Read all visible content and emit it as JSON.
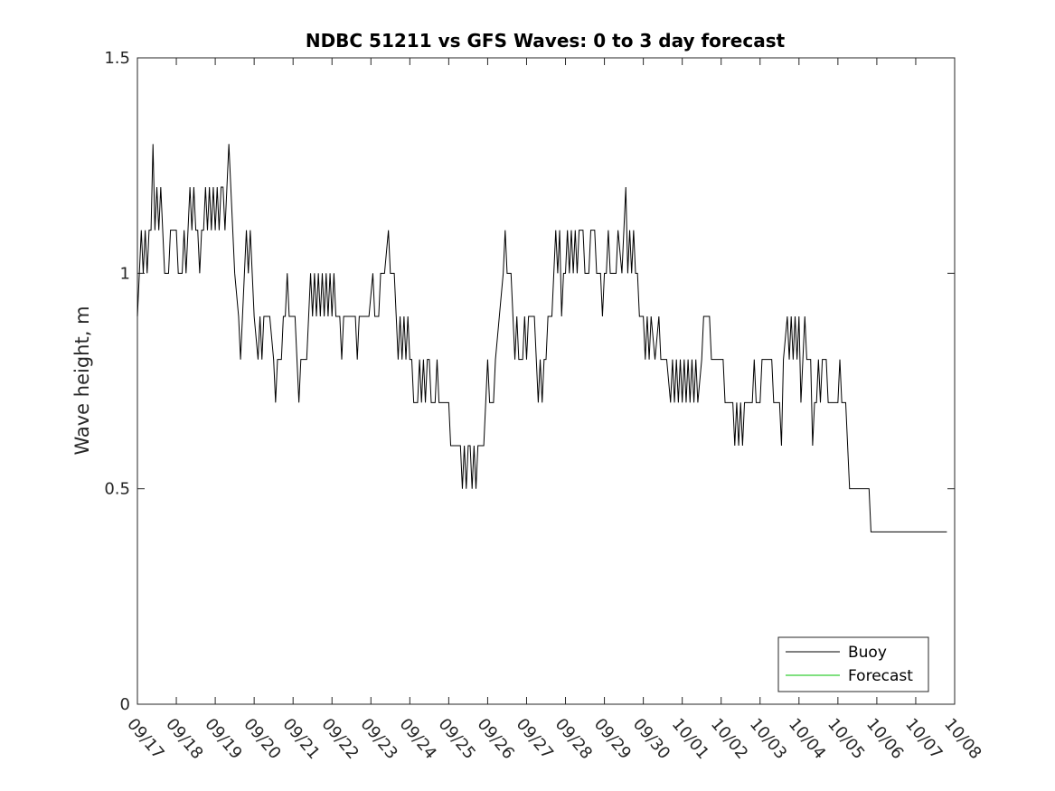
{
  "chart_data": {
    "type": "line",
    "title": "NDBC 51211 vs GFS Waves: 0 to 3 day forecast",
    "xlabel": "",
    "ylabel": "Wave height, m",
    "ylim": [
      0,
      1.5
    ],
    "yticks": [
      0,
      0.5,
      1,
      1.5
    ],
    "ytick_labels": [
      "0",
      "0.5",
      "1",
      "1.5"
    ],
    "xlim_days": [
      0,
      21
    ],
    "xtick_labels": [
      "09/17",
      "09/18",
      "09/19",
      "09/20",
      "09/21",
      "09/22",
      "09/23",
      "09/24",
      "09/25",
      "09/26",
      "09/27",
      "09/28",
      "09/29",
      "09/30",
      "10/01",
      "10/02",
      "10/03",
      "10/04",
      "10/05",
      "10/06",
      "10/07",
      "10/08"
    ],
    "legend": {
      "location": "bottom-right",
      "entries": [
        "Buoy",
        "Forecast"
      ]
    },
    "series": [
      {
        "name": "Buoy",
        "color": "#000000",
        "x_unit": "days since 09/17 00:00",
        "points": [
          [
            0.0,
            0.9
          ],
          [
            0.05,
            1.0
          ],
          [
            0.1,
            1.1
          ],
          [
            0.15,
            1.0
          ],
          [
            0.2,
            1.1
          ],
          [
            0.25,
            1.0
          ],
          [
            0.3,
            1.1
          ],
          [
            0.35,
            1.1
          ],
          [
            0.4,
            1.3
          ],
          [
            0.45,
            1.1
          ],
          [
            0.5,
            1.2
          ],
          [
            0.55,
            1.1
          ],
          [
            0.6,
            1.2
          ],
          [
            0.65,
            1.1
          ],
          [
            0.7,
            1.0
          ],
          [
            0.8,
            1.0
          ],
          [
            0.85,
            1.1
          ],
          [
            1.0,
            1.1
          ],
          [
            1.05,
            1.0
          ],
          [
            1.15,
            1.0
          ],
          [
            1.2,
            1.1
          ],
          [
            1.25,
            1.0
          ],
          [
            1.3,
            1.1
          ],
          [
            1.35,
            1.2
          ],
          [
            1.4,
            1.1
          ],
          [
            1.45,
            1.2
          ],
          [
            1.5,
            1.1
          ],
          [
            1.55,
            1.1
          ],
          [
            1.6,
            1.0
          ],
          [
            1.65,
            1.1
          ],
          [
            1.7,
            1.1
          ],
          [
            1.75,
            1.2
          ],
          [
            1.8,
            1.1
          ],
          [
            1.85,
            1.2
          ],
          [
            1.9,
            1.1
          ],
          [
            1.95,
            1.2
          ],
          [
            2.0,
            1.1
          ],
          [
            2.05,
            1.2
          ],
          [
            2.1,
            1.1
          ],
          [
            2.15,
            1.2
          ],
          [
            2.2,
            1.2
          ],
          [
            2.25,
            1.1
          ],
          [
            2.3,
            1.2
          ],
          [
            2.35,
            1.3
          ],
          [
            2.4,
            1.2
          ],
          [
            2.5,
            1.0
          ],
          [
            2.6,
            0.9
          ],
          [
            2.65,
            0.8
          ],
          [
            2.7,
            0.9
          ],
          [
            2.75,
            1.0
          ],
          [
            2.8,
            1.1
          ],
          [
            2.85,
            1.0
          ],
          [
            2.9,
            1.1
          ],
          [
            2.95,
            1.0
          ],
          [
            3.0,
            0.9
          ],
          [
            3.1,
            0.8
          ],
          [
            3.15,
            0.9
          ],
          [
            3.2,
            0.8
          ],
          [
            3.25,
            0.9
          ],
          [
            3.4,
            0.9
          ],
          [
            3.5,
            0.8
          ],
          [
            3.55,
            0.7
          ],
          [
            3.6,
            0.8
          ],
          [
            3.7,
            0.8
          ],
          [
            3.75,
            0.9
          ],
          [
            3.8,
            0.9
          ],
          [
            3.85,
            1.0
          ],
          [
            3.9,
            0.9
          ],
          [
            4.05,
            0.9
          ],
          [
            4.1,
            0.8
          ],
          [
            4.15,
            0.7
          ],
          [
            4.2,
            0.8
          ],
          [
            4.35,
            0.8
          ],
          [
            4.4,
            0.9
          ],
          [
            4.45,
            1.0
          ],
          [
            4.5,
            0.9
          ],
          [
            4.55,
            1.0
          ],
          [
            4.6,
            0.9
          ],
          [
            4.65,
            1.0
          ],
          [
            4.7,
            0.9
          ],
          [
            4.75,
            1.0
          ],
          [
            4.8,
            0.9
          ],
          [
            4.85,
            1.0
          ],
          [
            4.9,
            0.9
          ],
          [
            4.95,
            1.0
          ],
          [
            5.0,
            0.9
          ],
          [
            5.05,
            1.0
          ],
          [
            5.1,
            0.9
          ],
          [
            5.2,
            0.9
          ],
          [
            5.25,
            0.8
          ],
          [
            5.3,
            0.9
          ],
          [
            5.45,
            0.9
          ],
          [
            5.6,
            0.9
          ],
          [
            5.65,
            0.8
          ],
          [
            5.7,
            0.9
          ],
          [
            5.95,
            0.9
          ],
          [
            6.05,
            1.0
          ],
          [
            6.1,
            0.9
          ],
          [
            6.2,
            0.9
          ],
          [
            6.25,
            1.0
          ],
          [
            6.35,
            1.0
          ],
          [
            6.45,
            1.1
          ],
          [
            6.5,
            1.0
          ],
          [
            6.6,
            1.0
          ],
          [
            6.65,
            0.9
          ],
          [
            6.7,
            0.8
          ],
          [
            6.75,
            0.9
          ],
          [
            6.8,
            0.8
          ],
          [
            6.85,
            0.9
          ],
          [
            6.9,
            0.8
          ],
          [
            6.95,
            0.9
          ],
          [
            7.0,
            0.8
          ],
          [
            7.05,
            0.8
          ],
          [
            7.1,
            0.7
          ],
          [
            7.2,
            0.7
          ],
          [
            7.25,
            0.8
          ],
          [
            7.3,
            0.7
          ],
          [
            7.35,
            0.8
          ],
          [
            7.4,
            0.7
          ],
          [
            7.45,
            0.8
          ],
          [
            7.5,
            0.8
          ],
          [
            7.55,
            0.7
          ],
          [
            7.65,
            0.7
          ],
          [
            7.7,
            0.8
          ],
          [
            7.75,
            0.7
          ],
          [
            7.85,
            0.7
          ],
          [
            8.0,
            0.7
          ],
          [
            8.05,
            0.6
          ],
          [
            8.3,
            0.6
          ],
          [
            8.35,
            0.5
          ],
          [
            8.4,
            0.6
          ],
          [
            8.45,
            0.5
          ],
          [
            8.5,
            0.6
          ],
          [
            8.55,
            0.6
          ],
          [
            8.6,
            0.5
          ],
          [
            8.65,
            0.6
          ],
          [
            8.7,
            0.5
          ],
          [
            8.75,
            0.6
          ],
          [
            8.9,
            0.6
          ],
          [
            8.95,
            0.7
          ],
          [
            9.0,
            0.8
          ],
          [
            9.05,
            0.7
          ],
          [
            9.15,
            0.7
          ],
          [
            9.2,
            0.8
          ],
          [
            9.3,
            0.9
          ],
          [
            9.4,
            1.0
          ],
          [
            9.45,
            1.1
          ],
          [
            9.5,
            1.0
          ],
          [
            9.6,
            1.0
          ],
          [
            9.65,
            0.9
          ],
          [
            9.7,
            0.8
          ],
          [
            9.75,
            0.9
          ],
          [
            9.8,
            0.8
          ],
          [
            9.9,
            0.8
          ],
          [
            9.95,
            0.9
          ],
          [
            10.0,
            0.8
          ],
          [
            10.05,
            0.9
          ],
          [
            10.2,
            0.9
          ],
          [
            10.25,
            0.8
          ],
          [
            10.3,
            0.7
          ],
          [
            10.35,
            0.8
          ],
          [
            10.4,
            0.7
          ],
          [
            10.45,
            0.8
          ],
          [
            10.5,
            0.8
          ],
          [
            10.55,
            0.9
          ],
          [
            10.65,
            0.9
          ],
          [
            10.7,
            1.0
          ],
          [
            10.75,
            1.1
          ],
          [
            10.8,
            1.0
          ],
          [
            10.85,
            1.1
          ],
          [
            10.9,
            0.9
          ],
          [
            10.95,
            1.0
          ],
          [
            11.0,
            1.0
          ],
          [
            11.05,
            1.1
          ],
          [
            11.1,
            1.0
          ],
          [
            11.15,
            1.1
          ],
          [
            11.2,
            1.0
          ],
          [
            11.25,
            1.1
          ],
          [
            11.3,
            1.0
          ],
          [
            11.35,
            1.1
          ],
          [
            11.45,
            1.1
          ],
          [
            11.5,
            1.0
          ],
          [
            11.6,
            1.0
          ],
          [
            11.65,
            1.1
          ],
          [
            11.75,
            1.1
          ],
          [
            11.8,
            1.0
          ],
          [
            11.9,
            1.0
          ],
          [
            11.95,
            0.9
          ],
          [
            12.0,
            1.0
          ],
          [
            12.05,
            1.0
          ],
          [
            12.1,
            1.1
          ],
          [
            12.15,
            1.0
          ],
          [
            12.3,
            1.0
          ],
          [
            12.35,
            1.1
          ],
          [
            12.45,
            1.0
          ],
          [
            12.5,
            1.1
          ],
          [
            12.55,
            1.2
          ],
          [
            12.6,
            1.0
          ],
          [
            12.65,
            1.1
          ],
          [
            12.7,
            1.0
          ],
          [
            12.75,
            1.1
          ],
          [
            12.8,
            1.0
          ],
          [
            12.85,
            1.0
          ],
          [
            12.9,
            0.9
          ],
          [
            13.0,
            0.9
          ],
          [
            13.05,
            0.8
          ],
          [
            13.1,
            0.9
          ],
          [
            13.15,
            0.8
          ],
          [
            13.2,
            0.9
          ],
          [
            13.3,
            0.8
          ],
          [
            13.4,
            0.9
          ],
          [
            13.45,
            0.8
          ],
          [
            13.5,
            0.8
          ],
          [
            13.6,
            0.8
          ],
          [
            13.7,
            0.7
          ],
          [
            13.75,
            0.8
          ],
          [
            13.8,
            0.7
          ],
          [
            13.85,
            0.8
          ],
          [
            13.9,
            0.7
          ],
          [
            13.95,
            0.8
          ],
          [
            14.0,
            0.7
          ],
          [
            14.05,
            0.8
          ],
          [
            14.1,
            0.7
          ],
          [
            14.15,
            0.8
          ],
          [
            14.2,
            0.7
          ],
          [
            14.25,
            0.8
          ],
          [
            14.3,
            0.7
          ],
          [
            14.35,
            0.8
          ],
          [
            14.4,
            0.7
          ],
          [
            14.5,
            0.8
          ],
          [
            14.55,
            0.9
          ],
          [
            14.7,
            0.9
          ],
          [
            14.75,
            0.8
          ],
          [
            15.05,
            0.8
          ],
          [
            15.1,
            0.7
          ],
          [
            15.3,
            0.7
          ],
          [
            15.35,
            0.6
          ],
          [
            15.4,
            0.7
          ],
          [
            15.45,
            0.6
          ],
          [
            15.5,
            0.7
          ],
          [
            15.55,
            0.6
          ],
          [
            15.6,
            0.7
          ],
          [
            15.8,
            0.7
          ],
          [
            15.85,
            0.8
          ],
          [
            15.9,
            0.7
          ],
          [
            16.0,
            0.7
          ],
          [
            16.05,
            0.8
          ],
          [
            16.3,
            0.8
          ],
          [
            16.35,
            0.7
          ],
          [
            16.4,
            0.7
          ],
          [
            16.5,
            0.7
          ],
          [
            16.55,
            0.6
          ],
          [
            16.6,
            0.8
          ],
          [
            16.7,
            0.9
          ],
          [
            16.75,
            0.8
          ],
          [
            16.8,
            0.9
          ],
          [
            16.85,
            0.8
          ],
          [
            16.9,
            0.9
          ],
          [
            16.95,
            0.8
          ],
          [
            17.0,
            0.9
          ],
          [
            17.05,
            0.7
          ],
          [
            17.1,
            0.8
          ],
          [
            17.15,
            0.9
          ],
          [
            17.2,
            0.8
          ],
          [
            17.3,
            0.8
          ],
          [
            17.35,
            0.6
          ],
          [
            17.4,
            0.7
          ],
          [
            17.45,
            0.7
          ],
          [
            17.5,
            0.8
          ],
          [
            17.55,
            0.7
          ],
          [
            17.6,
            0.8
          ],
          [
            17.7,
            0.8
          ],
          [
            17.75,
            0.7
          ],
          [
            17.85,
            0.7
          ],
          [
            17.9,
            0.7
          ],
          [
            18.0,
            0.7
          ],
          [
            18.05,
            0.8
          ],
          [
            18.1,
            0.7
          ],
          [
            18.2,
            0.7
          ],
          [
            18.25,
            0.6
          ],
          [
            18.3,
            0.5
          ],
          [
            18.5,
            0.5
          ],
          [
            18.8,
            0.5
          ],
          [
            18.85,
            0.4
          ],
          [
            19.0,
            0.4
          ],
          [
            19.5,
            0.4
          ],
          [
            19.95,
            0.4
          ],
          [
            20.0,
            0.4
          ],
          [
            20.5,
            0.4
          ],
          [
            20.8,
            0.4
          ]
        ]
      },
      {
        "name": "Forecast",
        "color": "#00c000",
        "points": []
      }
    ]
  }
}
